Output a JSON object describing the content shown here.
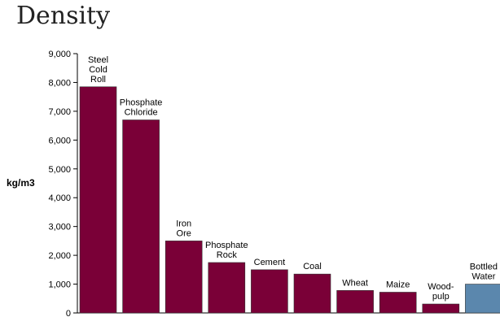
{
  "chart_data": {
    "type": "bar",
    "title": "Density",
    "xlabel": "",
    "ylabel": "kg/m3",
    "ylim": [
      0,
      9000
    ],
    "yticks": [
      0,
      1000,
      2000,
      3000,
      4000,
      5000,
      6000,
      7000,
      8000,
      9000
    ],
    "ytick_labels": [
      "0",
      "1,000",
      "2,000",
      "3,000",
      "4,000",
      "5,000",
      "6,000",
      "7,000",
      "8,000",
      "9,000"
    ],
    "categories": [
      [
        "Steel",
        "Cold",
        "Roll"
      ],
      [
        "Phosphate",
        "Chloride"
      ],
      [
        "Iron",
        "Ore"
      ],
      [
        "Phosphate",
        "Rock"
      ],
      [
        "Cement"
      ],
      [
        "Coal"
      ],
      [
        "Wheat"
      ],
      [
        "Maize"
      ],
      [
        "Wood-",
        "pulp"
      ],
      [
        "Bottled",
        "Water"
      ]
    ],
    "values": [
      7850,
      6700,
      2500,
      1750,
      1500,
      1350,
      780,
      720,
      310,
      1000
    ],
    "colors": [
      "#7a0037",
      "#7a0037",
      "#7a0037",
      "#7a0037",
      "#7a0037",
      "#7a0037",
      "#7a0037",
      "#7a0037",
      "#7a0037",
      "#5b87ad"
    ],
    "grid": false,
    "legend": "none"
  }
}
